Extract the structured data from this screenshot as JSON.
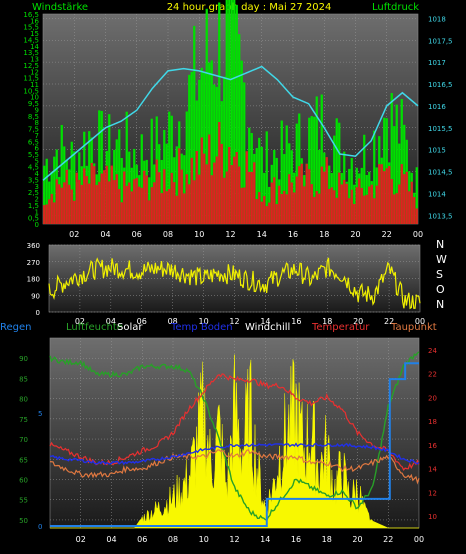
{
  "chart_data": [
    {
      "type": "line",
      "title": "24 hour graph day : Mai 27 2024",
      "left_label": "Windstärke",
      "right_label": "Luftdruck",
      "x_ticks": [
        "02",
        "04",
        "06",
        "08",
        "10",
        "12",
        "14",
        "16",
        "18",
        "20",
        "22",
        "00"
      ],
      "y_left_ticks": [
        "0",
        "0,5",
        "1",
        "1,5",
        "2",
        "2,5",
        "3",
        "3,5",
        "4",
        "4,5",
        "5",
        "5,5",
        "6",
        "6,5",
        "7",
        "7,5",
        "8",
        "8,5",
        "9",
        "9,5",
        "10",
        "10,5",
        "11",
        "11,5",
        "12",
        "12,5",
        "13",
        "13,5",
        "14",
        "14,5",
        "15",
        "15,5",
        "16",
        "16,5"
      ],
      "y_right_ticks": [
        "1013,5",
        "1014",
        "1014,5",
        "1015",
        "1015,5",
        "1016",
        "1016,5",
        "1017",
        "1017,5",
        "1018"
      ],
      "ylim_left": [
        0,
        16.5
      ],
      "ylim_right": [
        1013.3,
        1018.1
      ],
      "series": [
        {
          "name": "Luftdruck",
          "color": "#40d8e8",
          "x": [
            0,
            1,
            2,
            3,
            4,
            5,
            6,
            7,
            8,
            9,
            10,
            11,
            12,
            13,
            14,
            15,
            16,
            17,
            18,
            19,
            20,
            21,
            22,
            23,
            24
          ],
          "values": [
            1014.3,
            1014.6,
            1014.9,
            1015.2,
            1015.5,
            1015.65,
            1015.9,
            1016.4,
            1016.8,
            1016.85,
            1016.8,
            1016.7,
            1016.6,
            1016.75,
            1016.9,
            1016.6,
            1016.2,
            1016.05,
            1015.5,
            1014.9,
            1014.85,
            1015.2,
            1016.0,
            1016.3,
            1016.0
          ]
        },
        {
          "name": "Böen",
          "color": "#00e000",
          "x": [
            0,
            1,
            2,
            3,
            4,
            5,
            6,
            7,
            8,
            9,
            10,
            11,
            12,
            13,
            14,
            15,
            16,
            17,
            18,
            19,
            20,
            21,
            22,
            23,
            24
          ],
          "values": [
            4.5,
            6,
            5,
            7,
            6,
            6.5,
            5.5,
            6,
            7,
            9,
            12,
            14,
            15,
            10,
            5,
            5.5,
            6,
            7,
            8,
            6,
            5,
            6,
            9,
            7,
            3
          ]
        },
        {
          "name": "Wind",
          "color": "#e02020",
          "x": [
            0,
            1,
            2,
            3,
            4,
            5,
            6,
            7,
            8,
            9,
            10,
            11,
            12,
            13,
            14,
            15,
            16,
            17,
            18,
            19,
            20,
            21,
            22,
            23,
            24
          ],
          "values": [
            2.5,
            3.5,
            3,
            3.5,
            3.5,
            3,
            3,
            3.5,
            4,
            4.5,
            5,
            6,
            6.5,
            5,
            2.5,
            3,
            3.5,
            3.5,
            4,
            3,
            2.5,
            3,
            4.5,
            3.5,
            2
          ]
        }
      ]
    },
    {
      "type": "line",
      "right_letters": [
        "N",
        "W",
        "S",
        "O",
        "N"
      ],
      "x_ticks": [
        "02",
        "04",
        "06",
        "08",
        "10",
        "12",
        "14",
        "16",
        "18",
        "20",
        "22",
        "00"
      ],
      "y_ticks": [
        "360",
        "270",
        "180",
        "90",
        "0"
      ],
      "ylim": [
        0,
        360
      ],
      "series": [
        {
          "name": "Windrichtung",
          "color": "#f0f000",
          "x": [
            0,
            1,
            2,
            3,
            4,
            5,
            6,
            7,
            8,
            9,
            10,
            11,
            12,
            13,
            14,
            15,
            16,
            17,
            18,
            19,
            20,
            21,
            22,
            23,
            24
          ],
          "values": [
            110,
            160,
            200,
            230,
            240,
            230,
            220,
            235,
            230,
            200,
            180,
            210,
            200,
            170,
            150,
            200,
            230,
            170,
            240,
            200,
            100,
            90,
            230,
            60,
            50
          ]
        }
      ]
    },
    {
      "type": "line",
      "legend": [
        "Regen",
        "Luftfeuchte",
        "Solar",
        "Temp Boden",
        "Windchill",
        "Temperatur",
        "Taupunkt"
      ],
      "x_ticks": [
        "02",
        "04",
        "06",
        "08",
        "10",
        "12",
        "14",
        "16",
        "18",
        "20",
        "22",
        "00"
      ],
      "y_left_ticks": [
        "50",
        "55",
        "60",
        "65",
        "70",
        "75",
        "80",
        "85",
        "90"
      ],
      "y_rain_ticks": [
        "0",
        "5"
      ],
      "y_right_ticks": [
        "10",
        "12",
        "14",
        "16",
        "18",
        "20",
        "22",
        "24"
      ],
      "ylim_left": [
        48,
        95
      ],
      "ylim_right": [
        9,
        25
      ],
      "series": [
        {
          "name": "Luftfeuchte",
          "color": "#28a028",
          "x": [
            0,
            1,
            2,
            3,
            4,
            5,
            6,
            7,
            8,
            9,
            10,
            11,
            12,
            13,
            14,
            15,
            16,
            17,
            18,
            19,
            20,
            21,
            22,
            23,
            24
          ],
          "values": [
            90,
            89,
            89,
            86,
            86,
            86,
            88,
            88,
            88,
            87,
            80,
            70,
            58,
            52,
            50,
            55,
            60,
            58,
            56,
            57,
            53,
            58,
            78,
            88,
            92
          ]
        },
        {
          "name": "Temperatur",
          "color": "#e83030",
          "x": [
            0,
            1,
            2,
            3,
            4,
            5,
            6,
            7,
            8,
            9,
            10,
            11,
            12,
            13,
            14,
            15,
            16,
            17,
            18,
            19,
            20,
            21,
            22,
            23,
            24
          ],
          "values": [
            16,
            15.5,
            15,
            14.5,
            14.5,
            15,
            15.5,
            16,
            17,
            19,
            20.5,
            22,
            21.5,
            21.5,
            21,
            21,
            20,
            19.5,
            20,
            19,
            17,
            16,
            15.5,
            14,
            14.5
          ]
        },
        {
          "name": "Taupunkt",
          "color": "#e07840",
          "x": [
            0,
            1,
            2,
            3,
            4,
            5,
            6,
            7,
            8,
            9,
            10,
            11,
            12,
            13,
            14,
            15,
            16,
            17,
            18,
            19,
            20,
            21,
            22,
            23,
            24
          ],
          "values": [
            14.5,
            14,
            13.5,
            13.5,
            13.5,
            14,
            14,
            14.5,
            15,
            15,
            15,
            15.5,
            15,
            15.5,
            15,
            15,
            15,
            14.5,
            14.5,
            14,
            14,
            14.5,
            15,
            13.5,
            13
          ]
        },
        {
          "name": "Temp Boden",
          "color": "#2030e8",
          "x": [
            0,
            1,
            2,
            3,
            4,
            5,
            6,
            7,
            8,
            9,
            10,
            11,
            12,
            13,
            14,
            15,
            16,
            17,
            18,
            19,
            20,
            21,
            22,
            23,
            24
          ],
          "values": [
            15,
            14.8,
            14.7,
            14.5,
            14.5,
            14.5,
            14.6,
            14.8,
            15,
            15.3,
            15.6,
            15.8,
            16,
            16,
            16,
            16,
            16,
            16,
            16,
            16,
            15.9,
            15.8,
            15.5,
            14.8,
            14.5
          ]
        },
        {
          "name": "Regen",
          "color": "#2080e8",
          "x": [
            0,
            2,
            4,
            6,
            8,
            10,
            12,
            14,
            14.1,
            16,
            18,
            20,
            22,
            22.1,
            23,
            23.1,
            24
          ],
          "values": [
            0,
            0,
            0,
            0,
            0,
            0,
            0,
            0,
            1.2,
            1.2,
            1.2,
            1.2,
            1.2,
            6.5,
            6.5,
            7.2,
            7.2
          ]
        },
        {
          "name": "Solar",
          "color": "#f8f800",
          "x": [
            0,
            5.5,
            6,
            7,
            8,
            9,
            9.5,
            10,
            10.5,
            11,
            11.5,
            12,
            12.5,
            13,
            13.5,
            14,
            14.5,
            15,
            15.5,
            16,
            16.5,
            17,
            17.5,
            18,
            18.5,
            19,
            19.5,
            20,
            20.5,
            21,
            22,
            24
          ],
          "values": [
            0,
            0,
            0.5,
            1,
            1.5,
            2.5,
            4,
            6,
            3,
            5,
            2,
            6,
            4,
            6,
            3,
            1,
            2,
            4,
            5,
            6,
            4,
            5,
            3,
            4,
            2,
            3,
            1.5,
            2,
            0.8,
            0.3,
            0,
            0
          ]
        }
      ]
    }
  ]
}
